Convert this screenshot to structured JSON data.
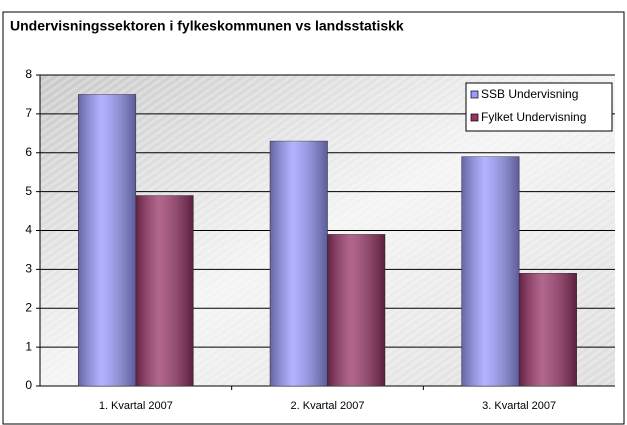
{
  "chart_data": {
    "type": "bar",
    "title": "Undervisningssektoren i fylkeskommunen vs landsstatiskk",
    "categories": [
      "1. Kvartal 2007",
      "2. Kvartal 2007",
      "3. Kvartal 2007"
    ],
    "series": [
      {
        "name": "SSB Undervisning",
        "color": "#9999ff",
        "values": [
          7.5,
          6.3,
          5.9
        ]
      },
      {
        "name": "Fylket Undervisning",
        "color": "#993366",
        "values": [
          4.9,
          3.9,
          2.9
        ]
      }
    ],
    "ylim": [
      0,
      8
    ],
    "yticks": [
      0,
      1,
      2,
      3,
      4,
      5,
      6,
      7,
      8
    ],
    "grid": true,
    "legend": "top-right"
  }
}
